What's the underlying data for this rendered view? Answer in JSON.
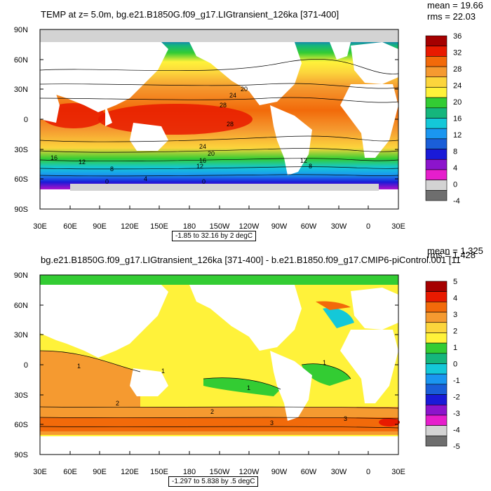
{
  "panels": [
    {
      "title": "TEMP at z=   5.0m, bg.e21.B1850G.f09_g17.LIGtransient_126ka [371-400]",
      "stats": [
        "mean = 19.66",
        "rms = 22.03"
      ],
      "footer": "-1.85 to 32.16 by 2 degC",
      "lat_ticks": [
        "90N",
        "60N",
        "30N",
        "0",
        "30S",
        "60S",
        "90S"
      ],
      "lon_ticks": [
        "30E",
        "60E",
        "90E",
        "120E",
        "150E",
        "180",
        "150W",
        "120W",
        "90W",
        "60W",
        "30W",
        "0",
        "30E"
      ],
      "colorbar": {
        "labels": [
          "36",
          "32",
          "28",
          "24",
          "20",
          "16",
          "12",
          "8",
          "4",
          "0",
          "-4"
        ],
        "colors": [
          "#a50000",
          "#e81a00",
          "#f26a0a",
          "#f59a30",
          "#fcd53c",
          "#fff23a",
          "#33cc33",
          "#15b67c",
          "#14c8d8",
          "#1a96f0",
          "#1a5ed8",
          "#1a1ad8",
          "#8c14cc",
          "#e61ecc",
          "#d3d3d3",
          "#6e6e6e"
        ]
      },
      "contour_labels": [
        "20",
        "24",
        "28",
        "28",
        "24",
        "20",
        "16",
        "12",
        "16",
        "12",
        "8",
        "0",
        "4",
        "0",
        "12",
        "8"
      ]
    },
    {
      "title": "bg.e21.B1850G.f09_g17.LIGtransient_126ka [371-400] - b.e21.B1850.f09_g17.CMIP6-piControl.001 [11",
      "stats": [
        "mean = 1.325",
        "rms = 1.428"
      ],
      "footer": "-1.297 to 5.838 by .5 degC",
      "lat_ticks": [
        "90N",
        "60N",
        "30N",
        "0",
        "30S",
        "60S",
        "90S"
      ],
      "lon_ticks": [
        "30E",
        "60E",
        "90E",
        "120E",
        "150E",
        "180",
        "150W",
        "120W",
        "90W",
        "60W",
        "30W",
        "0",
        "30E"
      ],
      "colorbar": {
        "labels": [
          "5",
          "4",
          "3",
          "2",
          "1",
          "0",
          "-1",
          "-2",
          "-3",
          "-4",
          "-5"
        ],
        "colors": [
          "#a50000",
          "#e81a00",
          "#f26a0a",
          "#f59a30",
          "#fcd53c",
          "#fff23a",
          "#33cc33",
          "#15b67c",
          "#14c8d8",
          "#1a96f0",
          "#1a5ed8",
          "#1a1ad8",
          "#8c14cc",
          "#e61ecc",
          "#d3d3d3",
          "#6e6e6e"
        ]
      },
      "contour_labels": [
        "1",
        "2",
        "1",
        "1",
        "1",
        "2",
        "3",
        "3"
      ]
    }
  ]
}
